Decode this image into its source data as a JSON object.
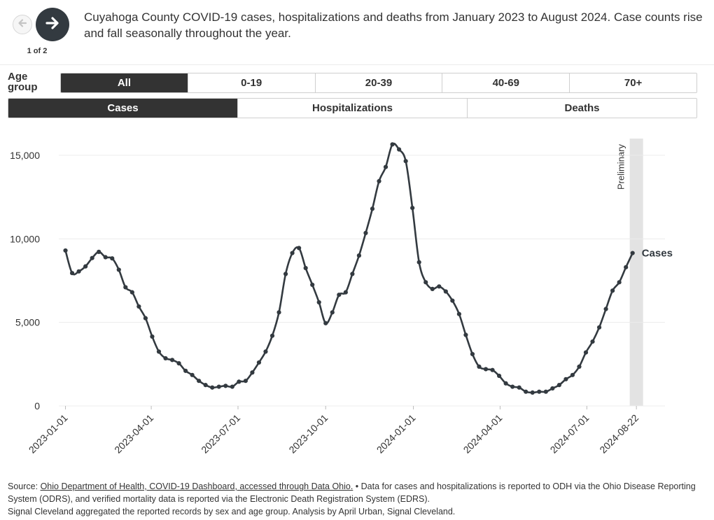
{
  "nav": {
    "pager_text": "1 of 2"
  },
  "caption": "Cuyahoga County COVID-19 cases, hospitalizations and deaths from January 2023 to August 2024. Case counts rise and fall seasonally throughout the year.",
  "age_filter": {
    "label_line1": "Age",
    "label_line2": "group",
    "options": [
      "All",
      "0-19",
      "20-39",
      "40-69",
      "70+"
    ],
    "selected": "All"
  },
  "metric_filter": {
    "options": [
      "Cases",
      "Hospitalizations",
      "Deaths"
    ],
    "selected": "Cases"
  },
  "colors": {
    "line": "#333a40",
    "active_button": "#333333",
    "preliminary_band": "#e3e3e3",
    "grid": "#ececec"
  },
  "icons": {
    "prev": "arrow-left-icon",
    "next": "arrow-right-icon"
  },
  "chart_data": {
    "type": "line",
    "x_scale": "time",
    "xlim": [
      "2022-12-25",
      "2024-09-21"
    ],
    "ylim": [
      0,
      16000
    ],
    "yticks": [
      0,
      5000,
      10000,
      15000
    ],
    "ytick_labels": [
      "0",
      "5,000",
      "10,000",
      "15,000"
    ],
    "xticks": [
      "2023-01-01",
      "2023-04-01",
      "2023-07-01",
      "2023-10-01",
      "2024-01-01",
      "2024-04-01",
      "2024-07-01",
      "2024-08-22"
    ],
    "xtick_labels": [
      "2023-01-01",
      "2023-04-01",
      "2023-07-01",
      "2023-10-01",
      "2024-01-01",
      "2024-04-01",
      "2024-07-01",
      "2024-08-22"
    ],
    "grid": "horizontal",
    "preliminary_band": {
      "label": "Preliminary",
      "start": "2024-08-15",
      "end": "2024-08-29"
    },
    "series": [
      {
        "name": "Cases",
        "x": [
          "2023-01-01",
          "2023-01-08",
          "2023-01-15",
          "2023-01-22",
          "2023-01-29",
          "2023-02-05",
          "2023-02-12",
          "2023-02-19",
          "2023-02-26",
          "2023-03-05",
          "2023-03-12",
          "2023-03-19",
          "2023-03-26",
          "2023-04-02",
          "2023-04-09",
          "2023-04-16",
          "2023-04-23",
          "2023-04-30",
          "2023-05-07",
          "2023-05-14",
          "2023-05-21",
          "2023-05-28",
          "2023-06-04",
          "2023-06-11",
          "2023-06-18",
          "2023-06-25",
          "2023-07-02",
          "2023-07-09",
          "2023-07-16",
          "2023-07-23",
          "2023-07-30",
          "2023-08-06",
          "2023-08-13",
          "2023-08-20",
          "2023-08-27",
          "2023-09-03",
          "2023-09-10",
          "2023-09-17",
          "2023-09-24",
          "2023-10-01",
          "2023-10-08",
          "2023-10-15",
          "2023-10-22",
          "2023-10-29",
          "2023-11-05",
          "2023-11-12",
          "2023-11-19",
          "2023-11-26",
          "2023-12-03",
          "2023-12-10",
          "2023-12-17",
          "2023-12-24",
          "2023-12-31",
          "2024-01-07",
          "2024-01-14",
          "2024-01-21",
          "2024-01-28",
          "2024-02-04",
          "2024-02-11",
          "2024-02-18",
          "2024-02-25",
          "2024-03-03",
          "2024-03-10",
          "2024-03-17",
          "2024-03-24",
          "2024-03-31",
          "2024-04-07",
          "2024-04-14",
          "2024-04-21",
          "2024-04-28",
          "2024-05-05",
          "2024-05-12",
          "2024-05-19",
          "2024-05-26",
          "2024-06-02",
          "2024-06-09",
          "2024-06-16",
          "2024-06-23",
          "2024-06-30",
          "2024-07-07",
          "2024-07-14",
          "2024-07-21",
          "2024-07-28",
          "2024-08-04",
          "2024-08-11",
          "2024-08-18"
        ],
        "values": [
          9300,
          7950,
          8050,
          8350,
          8850,
          9220,
          8900,
          8830,
          8150,
          7100,
          6800,
          5950,
          5250,
          4150,
          3250,
          2850,
          2750,
          2550,
          2100,
          1850,
          1500,
          1250,
          1100,
          1150,
          1200,
          1150,
          1450,
          1500,
          2000,
          2600,
          3250,
          4200,
          5600,
          7900,
          9150,
          9450,
          8250,
          7250,
          6200,
          4950,
          5600,
          6650,
          6800,
          7900,
          9000,
          10350,
          11800,
          13450,
          14300,
          15650,
          15350,
          14650,
          11850,
          8600,
          7400,
          7000,
          7150,
          6850,
          6300,
          5500,
          4250,
          3100,
          2350,
          2200,
          2150,
          1800,
          1350,
          1150,
          1100,
          850,
          800,
          850,
          850,
          1050,
          1250,
          1600,
          1850,
          2350,
          3200,
          3850,
          4700,
          5800,
          6900,
          7400,
          8300,
          9150
        ]
      }
    ],
    "end_label": "Cases"
  },
  "source": {
    "prefix": "Source: ",
    "link_text": "Ohio Department of Health, COVID-19 Dashboard, accessed through Data Ohio.",
    "text1": " • Data for cases and hospitalizations is reported to ODH via the Ohio Disease Reporting System (ODRS), and verified mortality data is reported via the Electronic Death Registration System (EDRS).",
    "text2": "Signal Cleveland aggregated the reported records by sex and age group. Analysis by April Urban, Signal Cleveland."
  }
}
